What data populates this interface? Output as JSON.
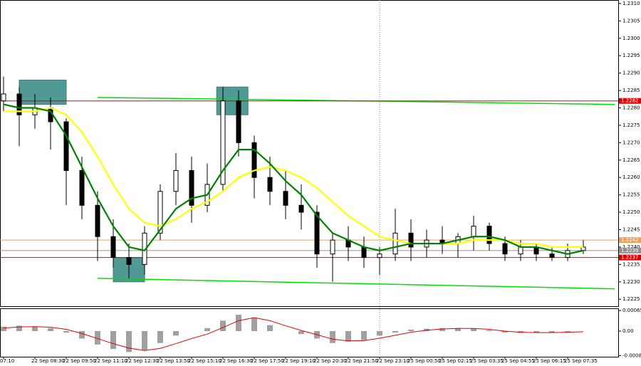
{
  "chart_data": {
    "type": "candlestick",
    "categories": [
      "07:10",
      null,
      "22 Sep 08:30",
      null,
      "22 Sep 09:50",
      null,
      "22 Sep 11:10",
      null,
      "22 Sep 12:30",
      null,
      "22 Sep 13:50",
      null,
      "22 Sep 15:10",
      null,
      "22 Sep 16:30",
      null,
      "22 Sep 17:50",
      null,
      "22 Sep 19:10",
      null,
      "22 Sep 20:30",
      null,
      "22 Sep 21:50",
      null,
      "22 Sep 23:10",
      null,
      "25 Sep 00:50",
      null,
      "25 Sep 02:15",
      null,
      "25 Sep 03:35",
      null,
      "25 Sep 04:55",
      null,
      "25 Sep 06:15",
      null,
      "25 Sep 07:35",
      null
    ],
    "ohlc": [
      [
        1.2282,
        1.2289,
        1.2279,
        1.2284
      ],
      [
        1.2284,
        1.2286,
        1.2269,
        1.2278
      ],
      [
        1.2278,
        1.2284,
        1.2274,
        1.228
      ],
      [
        1.228,
        1.2283,
        1.2268,
        1.2276
      ],
      [
        1.2276,
        1.2277,
        1.2252,
        1.2262
      ],
      [
        1.2262,
        1.2266,
        1.2248,
        1.2252
      ],
      [
        1.2252,
        1.2256,
        1.2236,
        1.2243
      ],
      [
        1.2243,
        1.2248,
        1.2234,
        1.2237
      ],
      [
        1.2237,
        1.2241,
        1.2231,
        1.2235
      ],
      [
        1.2235,
        1.2246,
        1.2232,
        1.2244
      ],
      [
        1.2244,
        1.2258,
        1.2242,
        1.2256
      ],
      [
        1.2256,
        1.2267,
        1.2252,
        1.2262
      ],
      [
        1.2262,
        1.2266,
        1.2247,
        1.2252
      ],
      [
        1.2252,
        1.2264,
        1.225,
        1.2258
      ],
      [
        1.2258,
        1.2286,
        1.2256,
        1.2282
      ],
      [
        1.2282,
        1.2285,
        1.2266,
        1.227
      ],
      [
        1.227,
        1.2272,
        1.2254,
        1.226
      ],
      [
        1.226,
        1.2266,
        1.2252,
        1.2256
      ],
      [
        1.2256,
        1.2262,
        1.2248,
        1.2252
      ],
      [
        1.2252,
        1.2258,
        1.2245,
        1.225
      ],
      [
        1.225,
        1.2252,
        1.2234,
        1.2238
      ],
      [
        1.2238,
        1.2244,
        1.223,
        1.2242
      ],
      [
        1.2242,
        1.2246,
        1.2236,
        1.224
      ],
      [
        1.224,
        1.2243,
        1.2234,
        1.2237
      ],
      [
        1.2237,
        1.224,
        1.2232,
        1.2238
      ],
      [
        1.2238,
        1.2251,
        1.2236,
        1.2244
      ],
      [
        1.2244,
        1.2248,
        1.2236,
        1.224
      ],
      [
        1.224,
        1.2245,
        1.2237,
        1.2242
      ],
      [
        1.2242,
        1.2246,
        1.2238,
        1.2241
      ],
      [
        1.2241,
        1.2244,
        1.2237,
        1.2243
      ],
      [
        1.2243,
        1.2249,
        1.2239,
        1.2246
      ],
      [
        1.2246,
        1.2247,
        1.2239,
        1.2241
      ],
      [
        1.2241,
        1.2243,
        1.2236,
        1.2238
      ],
      [
        1.2238,
        1.2242,
        1.2236,
        1.224
      ],
      [
        1.224,
        1.2241,
        1.2236,
        1.2238
      ],
      [
        1.2238,
        1.224,
        1.2236,
        1.2237
      ],
      [
        1.2237,
        1.2241,
        1.2236,
        1.2239
      ],
      [
        1.2239,
        1.2242,
        1.2238,
        1.224
      ]
    ],
    "series": [
      {
        "color": "#ffff00",
        "values": [
          1.2279,
          1.2279,
          1.2279,
          1.228,
          1.2278,
          1.2273,
          1.2266,
          1.2258,
          1.2251,
          1.2247,
          1.2246,
          1.2248,
          1.2251,
          1.2253,
          1.2256,
          1.226,
          1.2262,
          1.2263,
          1.2262,
          1.226,
          1.2257,
          1.2253,
          1.2249,
          1.2246,
          1.2243,
          1.2242,
          1.2241,
          1.2241,
          1.2241,
          1.2241,
          1.2242,
          1.2242,
          1.2242,
          1.2241,
          1.2241,
          1.224,
          1.224,
          1.224
        ]
      },
      {
        "color": "#008000",
        "values": [
          1.2281,
          1.228,
          1.228,
          1.2279,
          1.2272,
          1.2263,
          1.2254,
          1.2246,
          1.224,
          1.2239,
          1.2245,
          1.2251,
          1.2254,
          1.2255,
          1.2262,
          1.2268,
          1.2268,
          1.2264,
          1.2259,
          1.2255,
          1.2249,
          1.2244,
          1.2242,
          1.224,
          1.2239,
          1.224,
          1.2241,
          1.2241,
          1.2241,
          1.2242,
          1.2243,
          1.2243,
          1.2242,
          1.224,
          1.224,
          1.2239,
          1.2238,
          1.2239
        ]
      }
    ],
    "levels": [
      {
        "value": 1.2282,
        "color": "#e00000"
      },
      {
        "value": 1.2242,
        "color": "#f0a050"
      },
      {
        "value": 1.2239,
        "color": "#909090"
      },
      {
        "value": 1.2237,
        "color": "#e00000"
      }
    ],
    "trendlines": [
      {
        "from": 6,
        "to": 39,
        "values": [
          1.2283,
          1.2281
        ],
        "color": "#00e000"
      },
      {
        "from": 6,
        "to": 39,
        "values": [
          1.2231,
          1.2228
        ],
        "color": "#00e000"
      }
    ],
    "zones": [
      {
        "from": 1,
        "to": 4,
        "values": [
          1.2281,
          1.2288
        ]
      },
      {
        "from": 7,
        "to": 9,
        "values": [
          1.223,
          1.2237
        ]
      },
      {
        "from": 13.6,
        "to": 15.6,
        "values": [
          1.2278,
          1.2286
        ]
      }
    ],
    "vline": 24,
    "ylim": [
      1.2223,
      1.2311
    ],
    "yticks": [
      {
        "value": 1.231,
        "label": "1.2310"
      },
      1.2305,
      {
        "value": 1.23,
        "label": "1.2300"
      },
      1.2295,
      {
        "value": 1.229,
        "label": "1.2290"
      },
      1.2285,
      {
        "value": 1.228,
        "label": "1.2280"
      },
      1.2275,
      {
        "value": 1.227,
        "label": "1.2270"
      },
      1.2265,
      {
        "value": 1.226,
        "label": "1.2260"
      },
      1.2255,
      {
        "value": 1.225,
        "label": "1.2250"
      },
      1.2245,
      {
        "value": 1.224,
        "label": "1.2240"
      },
      1.2235,
      {
        "value": 1.223,
        "label": "1.2230"
      },
      1.2225
    ],
    "macd": {
      "histogram": [
        0.00015,
        0.00018,
        0.00015,
        0.0001,
        -5e-05,
        -0.00025,
        -0.00045,
        -0.0006,
        -0.0007,
        -0.00065,
        -0.0004,
        -0.00015,
        0,
        0.0001,
        0.00035,
        0.00055,
        0.00045,
        0.0002,
        0,
        -0.0001,
        -0.00025,
        -0.0004,
        -0.00035,
        -0.0003,
        -0.00015,
        -5e-05,
        5e-05,
        8e-05,
        0.0001,
        0.0001,
        8e-05,
        3e-05,
        -5e-05,
        -6e-05,
        -5e-05,
        -5e-05,
        -4e-05,
        0
      ],
      "signal": [
        0.0001,
        0.00014,
        0.00015,
        0.00013,
        6e-05,
        -8e-05,
        -0.00025,
        -0.00042,
        -0.00057,
        -0.00065,
        -0.00058,
        -0.00042,
        -0.00025,
        -0.0001,
        0.00012,
        0.00035,
        0.00045,
        0.00035,
        0.00018,
        2e-05,
        -0.00012,
        -0.00027,
        -0.00033,
        -0.00032,
        -0.00024,
        -0.00014,
        -4e-05,
        3e-05,
        7e-05,
        9e-05,
        9e-05,
        6e-05,
        0,
        -4e-05,
        -5e-05,
        -5e-05,
        -4e-05,
        -2e-05
      ],
      "signal_color": "#e00000",
      "ylim": [
        -0.00086,
        0.00074
      ],
      "yticks": [
        0.00069,
        {
          "value": 0,
          "label": "0.00"
        },
        -0.00082
      ]
    }
  }
}
